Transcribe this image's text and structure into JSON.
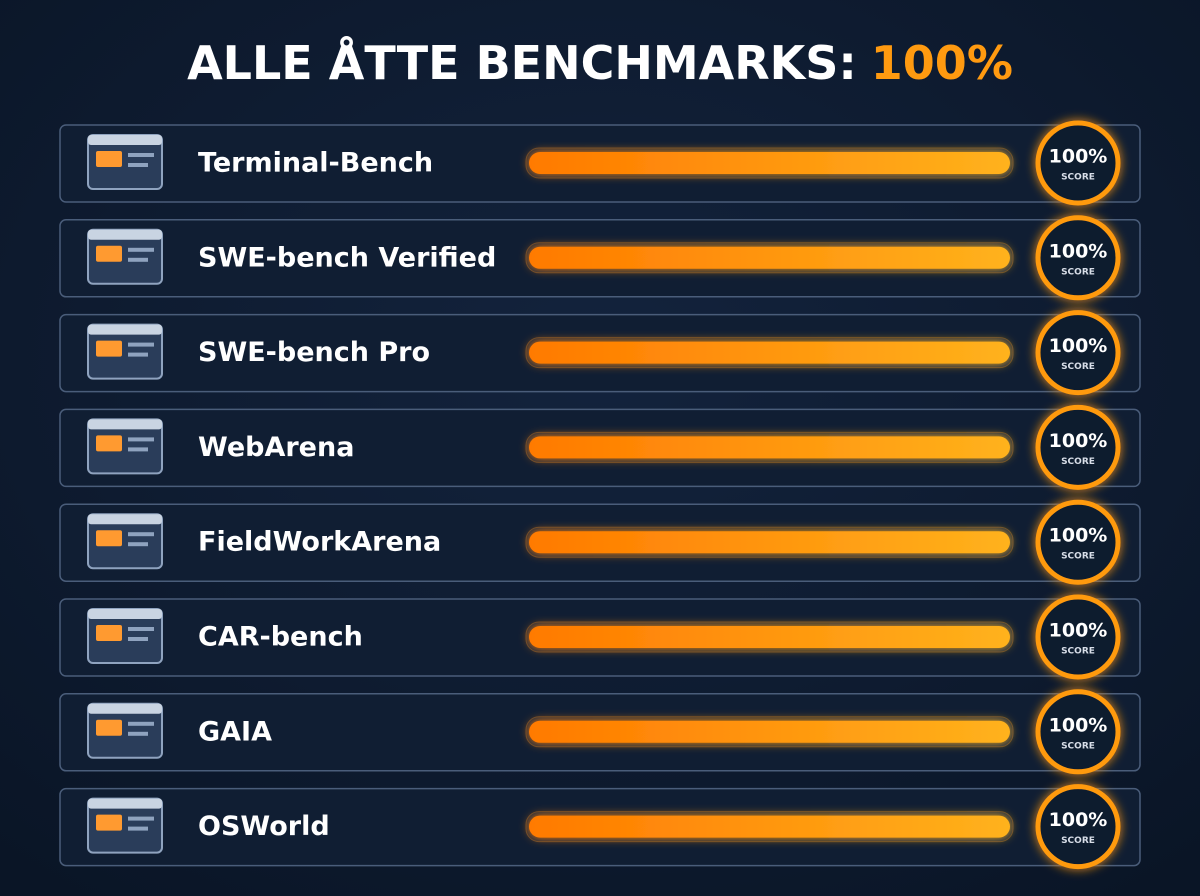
{
  "chart_data": {
    "type": "hbar",
    "title": [
      "ALLE ÅTTE BENCHMARKS:",
      "100%"
    ],
    "categories": [
      "Terminal-Bench",
      "SWE-bench Verified",
      "SWE-bench Pro",
      "WebArena",
      "FieldWorkArena",
      "CAR-bench",
      "GAIA",
      "OSWorld"
    ],
    "values": [
      100,
      100,
      100,
      100,
      100,
      100,
      100,
      100
    ],
    "value_labels": [
      "100%",
      "100%",
      "100%",
      "100%",
      "100%",
      "100%",
      "100%",
      "100%"
    ],
    "value_caption": "SCORE",
    "xlim": [
      0,
      100
    ],
    "color": "#ff9a10"
  }
}
